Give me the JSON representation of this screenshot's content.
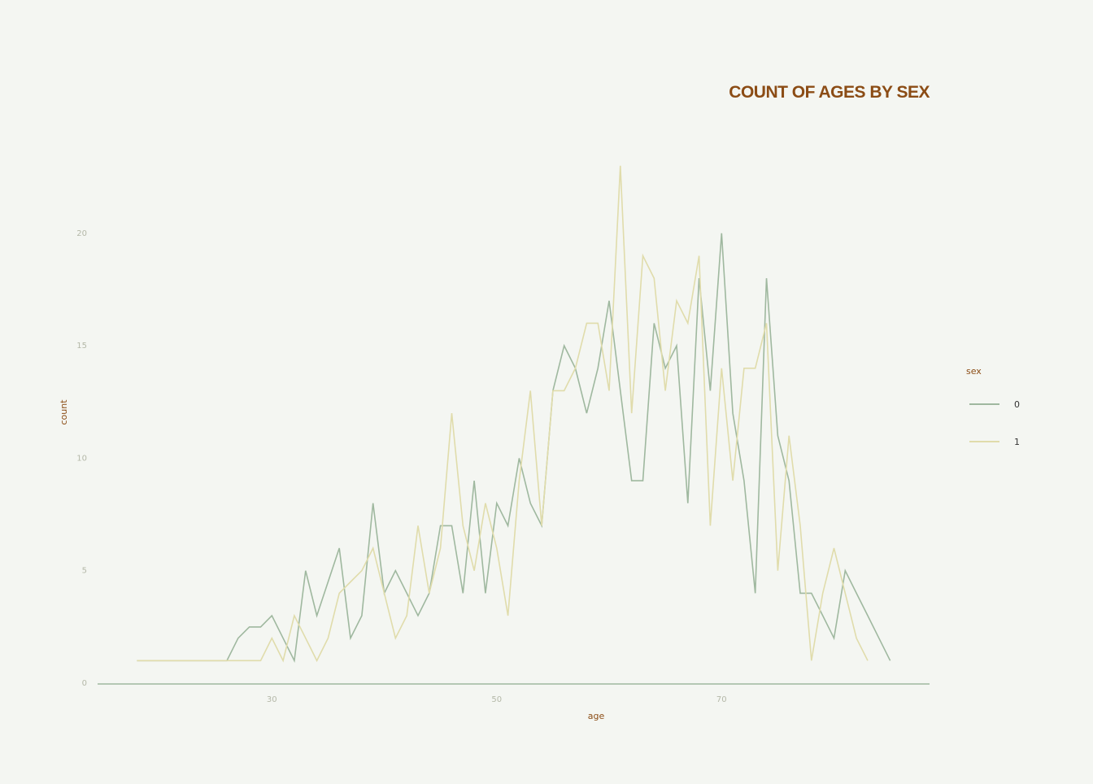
{
  "chart_data": {
    "type": "line",
    "title": "COUNT OF AGES BY SEX",
    "xlabel": "age",
    "ylabel": "count",
    "xlim": [
      14.5,
      88.5
    ],
    "ylim": [
      0,
      23.5
    ],
    "xticks": [
      30,
      50,
      70
    ],
    "yticks": [
      0,
      5,
      10,
      15,
      20
    ],
    "legend": {
      "title": "sex",
      "position": "right"
    },
    "series": [
      {
        "name": "0",
        "color": "#9fb89f",
        "x": [
          18,
          19,
          20,
          21,
          22,
          23,
          24,
          25,
          26,
          27,
          28,
          29,
          30,
          31,
          32,
          33,
          34,
          35,
          36,
          37,
          38,
          39,
          40,
          41,
          42,
          43,
          44,
          45,
          46,
          47,
          48,
          49,
          50,
          51,
          52,
          53,
          54,
          55,
          56,
          57,
          58,
          59,
          60,
          61,
          62,
          63,
          64,
          65,
          66,
          67,
          68,
          69,
          70,
          71,
          72,
          73,
          74,
          75,
          76,
          77,
          78,
          79,
          80,
          81,
          82,
          83,
          84,
          85
        ],
        "y": [
          1,
          1,
          1,
          1,
          1,
          1,
          1,
          1,
          1,
          2,
          2.5,
          2.5,
          3,
          2,
          1,
          5,
          3,
          4.5,
          6,
          2,
          3,
          8,
          4,
          5,
          4,
          3,
          4,
          7,
          7,
          4,
          9,
          4,
          8,
          7,
          10,
          8,
          7,
          13,
          15,
          14,
          12,
          14,
          17,
          13,
          9,
          9,
          16,
          14,
          15,
          8,
          18,
          13,
          20,
          12,
          9,
          4,
          18,
          11,
          9,
          4,
          4,
          3,
          2,
          5,
          4,
          3,
          2,
          1
        ]
      },
      {
        "name": "1",
        "color": "#e0dcab",
        "x": [
          18,
          19,
          20,
          21,
          22,
          23,
          24,
          25,
          26,
          27,
          28,
          29,
          30,
          31,
          32,
          33,
          34,
          35,
          36,
          37,
          38,
          39,
          40,
          41,
          42,
          43,
          44,
          45,
          46,
          47,
          48,
          49,
          50,
          51,
          52,
          53,
          54,
          55,
          56,
          57,
          58,
          59,
          60,
          61,
          62,
          63,
          64,
          65,
          66,
          67,
          68,
          69,
          70,
          71,
          72,
          73,
          74,
          75,
          76,
          77,
          78,
          79,
          80,
          81,
          82,
          83
        ],
        "y": [
          1,
          1,
          1,
          1,
          1,
          1,
          1,
          1,
          1,
          1,
          1,
          1,
          2,
          1,
          3,
          2,
          1,
          2,
          4,
          4.5,
          5,
          6,
          4,
          2,
          3,
          7,
          4,
          6,
          12,
          7,
          5,
          8,
          6,
          3,
          9,
          13,
          7,
          13,
          13,
          14,
          16,
          16,
          13,
          23,
          12,
          19,
          18,
          13,
          17,
          16,
          19,
          7,
          14,
          9,
          14,
          14,
          16,
          5,
          11,
          7,
          1,
          4,
          6,
          4,
          2,
          1
        ]
      }
    ]
  }
}
